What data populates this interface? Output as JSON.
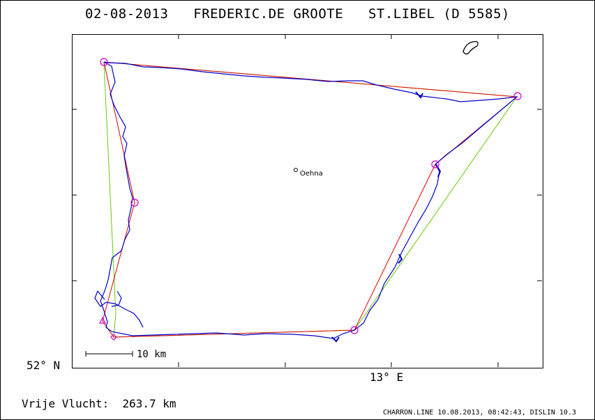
{
  "header": {
    "date": "02-08-2013",
    "pilot": "FREDERIC.DE GROOTE",
    "glider": "ST.LIBEL (D 5585)"
  },
  "axes": {
    "lat_label": "52° N",
    "lon_label": "13° E"
  },
  "map": {
    "town": "Oehna",
    "scale_label": "10 km"
  },
  "distance": {
    "label": "Vrije Vlucht:",
    "value": "263.7 km"
  },
  "footer": {
    "text": "CHARRON.LINE 10.08.2013, 08:42:43, DISLIN 10.3"
  },
  "colors": {
    "track": "#0000cc",
    "task_line": "#dd0000",
    "optimized_line": "#66cc00",
    "turnpoint": "#cc00cc"
  }
}
